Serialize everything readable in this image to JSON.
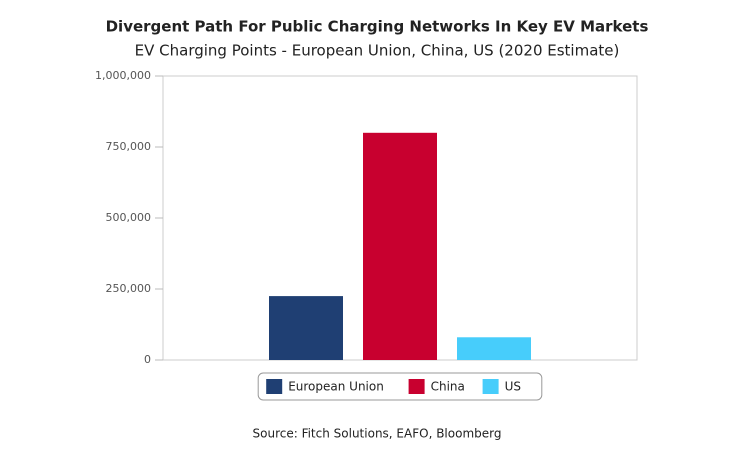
{
  "chart_data": {
    "type": "bar",
    "title": "Divergent Path For Public Charging Networks In Key EV Markets",
    "subtitle": "EV Charging Points - European Union, China, US (2020 Estimate)",
    "source": "Source: Fitch Solutions, EAFO, Bloomberg",
    "categories": [
      null
    ],
    "series": [
      {
        "name": "European Union",
        "color": "#1f3f73",
        "values": [
          225000
        ]
      },
      {
        "name": "China",
        "color": "#c8002f",
        "values": [
          800000
        ]
      },
      {
        "name": "US",
        "color": "#47cdfb",
        "values": [
          80000
        ]
      }
    ],
    "ylim": [
      0,
      1000000
    ],
    "yticks": [
      0,
      {
        "value": 250000,
        "label": "250,000"
      },
      {
        "value": 500000,
        "label": "500,000"
      },
      {
        "value": 750000,
        "label": "750,000"
      },
      {
        "value": 1000000,
        "label": "1,000,000"
      }
    ],
    "legend": "bottom"
  }
}
